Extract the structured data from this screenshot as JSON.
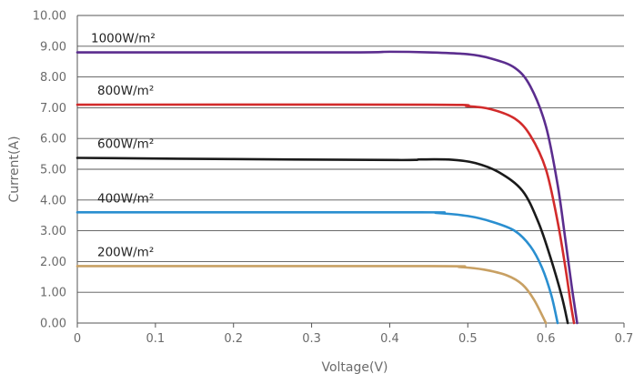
{
  "chart_data": {
    "type": "line",
    "title": "",
    "xlabel": "Voltage(V)",
    "ylabel": "Current(A)",
    "xlim": [
      0,
      0.7
    ],
    "ylim": [
      0,
      10
    ],
    "xticks": [
      "0",
      "0.1",
      "0.2",
      "0.3",
      "0.4",
      "0.5",
      "0.6",
      "0.7"
    ],
    "yticks": [
      "0.00",
      "1.00",
      "2.00",
      "3.00",
      "4.00",
      "5.00",
      "6.00",
      "7.00",
      "8.00",
      "9.00",
      "10.00"
    ],
    "grid": "horizontal",
    "legend": "none",
    "series": [
      {
        "name": "1000W/m²",
        "color": "#5b2d8e",
        "points": [
          [
            0,
            8.8
          ],
          [
            0.34,
            8.8
          ],
          [
            0.4,
            8.82
          ],
          [
            0.45,
            8.8
          ],
          [
            0.5,
            8.74
          ],
          [
            0.53,
            8.6
          ],
          [
            0.56,
            8.3
          ],
          [
            0.58,
            7.7
          ],
          [
            0.6,
            6.4
          ],
          [
            0.615,
            4.5
          ],
          [
            0.625,
            2.7
          ],
          [
            0.633,
            1.2
          ],
          [
            0.64,
            0
          ]
        ]
      },
      {
        "name": "800W/m²",
        "color": "#d22b2b",
        "points": [
          [
            0,
            7.1
          ],
          [
            0.45,
            7.1
          ],
          [
            0.5,
            7.05
          ],
          [
            0.53,
            6.95
          ],
          [
            0.56,
            6.65
          ],
          [
            0.58,
            6.1
          ],
          [
            0.6,
            5.0
          ],
          [
            0.615,
            3.3
          ],
          [
            0.625,
            1.8
          ],
          [
            0.632,
            0.6
          ],
          [
            0.636,
            0
          ]
        ]
      },
      {
        "name": "600W/m²",
        "color": "#1a1a1a",
        "points": [
          [
            0,
            5.37
          ],
          [
            0.2,
            5.33
          ],
          [
            0.41,
            5.3
          ],
          [
            0.44,
            5.32
          ],
          [
            0.48,
            5.31
          ],
          [
            0.51,
            5.2
          ],
          [
            0.54,
            4.9
          ],
          [
            0.57,
            4.3
          ],
          [
            0.59,
            3.3
          ],
          [
            0.605,
            2.2
          ],
          [
            0.62,
            0.9
          ],
          [
            0.628,
            0
          ]
        ]
      },
      {
        "name": "400W/m²",
        "color": "#2a8fd0",
        "points": [
          [
            0,
            3.6
          ],
          [
            0.43,
            3.6
          ],
          [
            0.46,
            3.58
          ],
          [
            0.5,
            3.48
          ],
          [
            0.53,
            3.3
          ],
          [
            0.56,
            3.0
          ],
          [
            0.58,
            2.5
          ],
          [
            0.595,
            1.8
          ],
          [
            0.607,
            0.9
          ],
          [
            0.615,
            0
          ]
        ]
      },
      {
        "name": "200W/m²",
        "color": "#c8a063",
        "points": [
          [
            0,
            1.85
          ],
          [
            0.45,
            1.85
          ],
          [
            0.49,
            1.82
          ],
          [
            0.52,
            1.74
          ],
          [
            0.55,
            1.55
          ],
          [
            0.57,
            1.25
          ],
          [
            0.585,
            0.75
          ],
          [
            0.6,
            0
          ]
        ]
      }
    ]
  }
}
